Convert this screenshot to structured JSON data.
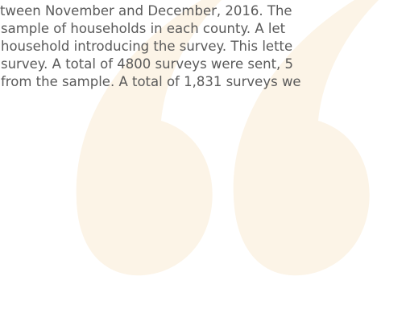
{
  "paragraph": {
    "lines": [
      "tween November and December, 2016. The",
      "sample of households in each county. A let",
      "household introducing the survey. This lette",
      "survey. A total of 4800 surveys were sent, 5",
      "from the sample. A total of 1,831 surveys we"
    ]
  }
}
